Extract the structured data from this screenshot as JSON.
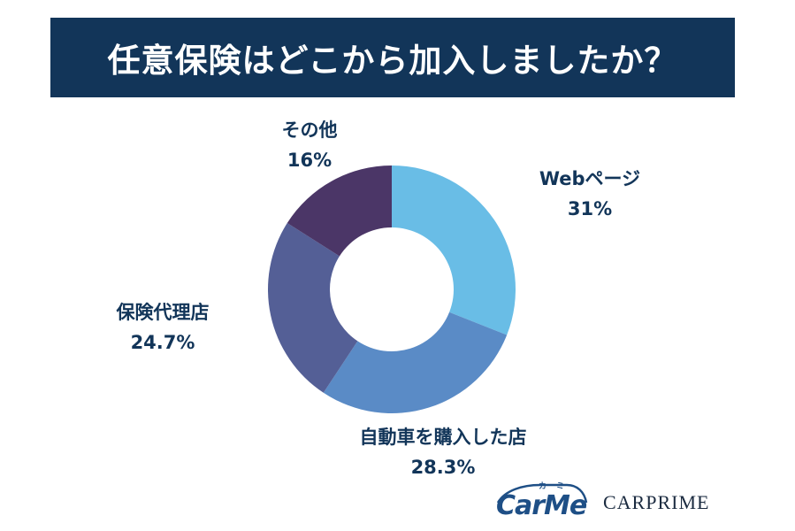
{
  "title": "任意保険はどこから加入しましたか？",
  "chart_data": {
    "type": "pie",
    "donut": true,
    "slices": [
      {
        "name": "Webページ",
        "value": 31,
        "label": "31%",
        "color": "#69bde6"
      },
      {
        "name": "自動車を購入した店",
        "value": 28.3,
        "label": "28.3%",
        "color": "#5a8bc6"
      },
      {
        "name": "保険代理店",
        "value": 24.7,
        "label": "24.7%",
        "color": "#545f96"
      },
      {
        "name": "その他",
        "value": 16,
        "label": "16%",
        "color": "#4b3667"
      }
    ]
  },
  "logos": {
    "carme_kana": "カーミー",
    "carme_word": "CarMe",
    "carprime": "CARPRIME"
  }
}
